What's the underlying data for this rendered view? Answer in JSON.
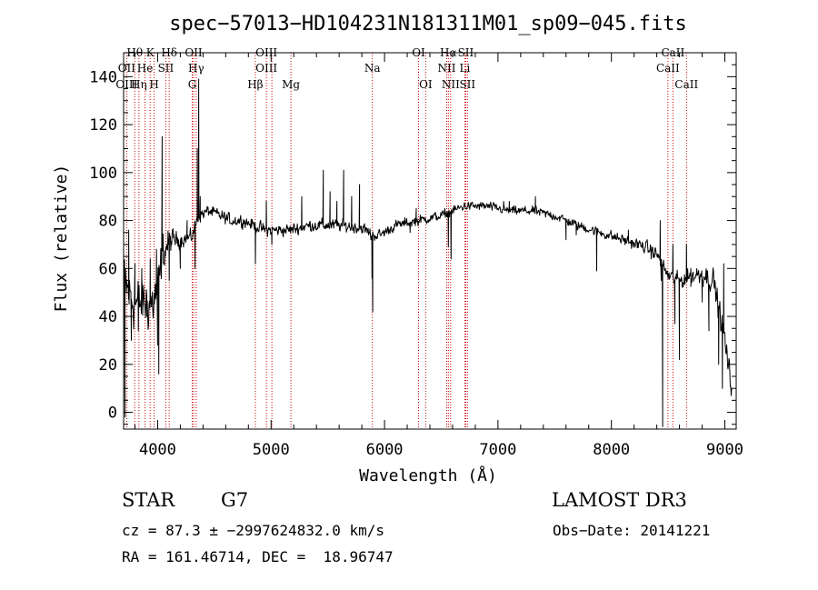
{
  "chart_data": {
    "type": "line",
    "title": "spec−57013−HD104231N181311M01_sp09−045.fits",
    "xlabel": "Wavelength (Å)",
    "ylabel": "Flux (relative)",
    "xlim": [
      3700,
      9100
    ],
    "ylim": [
      -7,
      150
    ],
    "x_ticks": [
      4000,
      5000,
      6000,
      7000,
      8000,
      9000
    ],
    "x_tick_labels": [
      "4000",
      "5000",
      "6000",
      "7000",
      "8000",
      "9000"
    ],
    "y_ticks": [
      0,
      20,
      40,
      60,
      80,
      100,
      120,
      140
    ],
    "y_tick_labels": [
      "0",
      "20",
      "40",
      "60",
      "80",
      "100",
      "120",
      "140"
    ],
    "grid": false,
    "line_color": "#000000",
    "marker_color": "#cc0000",
    "continuum_anchors": [
      [
        3700,
        55
      ],
      [
        3760,
        48
      ],
      [
        3820,
        45
      ],
      [
        3880,
        46
      ],
      [
        3950,
        45
      ],
      [
        4000,
        50
      ],
      [
        4050,
        67
      ],
      [
        4120,
        72
      ],
      [
        4200,
        72
      ],
      [
        4300,
        73
      ],
      [
        4360,
        82
      ],
      [
        4450,
        84
      ],
      [
        4550,
        82
      ],
      [
        4650,
        80
      ],
      [
        4750,
        80
      ],
      [
        4850,
        78
      ],
      [
        4950,
        76
      ],
      [
        5050,
        76
      ],
      [
        5150,
        76
      ],
      [
        5250,
        77
      ],
      [
        5350,
        78
      ],
      [
        5450,
        78
      ],
      [
        5600,
        78
      ],
      [
        5800,
        77
      ],
      [
        5890,
        74
      ],
      [
        5960,
        74
      ],
      [
        6100,
        78
      ],
      [
        6300,
        80
      ],
      [
        6500,
        82
      ],
      [
        6700,
        86
      ],
      [
        6900,
        86
      ],
      [
        7100,
        84
      ],
      [
        7300,
        84
      ],
      [
        7500,
        82
      ],
      [
        7700,
        78
      ],
      [
        7900,
        75
      ],
      [
        8100,
        72
      ],
      [
        8300,
        69
      ],
      [
        8400,
        66
      ],
      [
        8500,
        57
      ],
      [
        8600,
        55
      ],
      [
        8800,
        58
      ],
      [
        8900,
        55
      ],
      [
        9000,
        30
      ],
      [
        9050,
        12
      ]
    ],
    "spikes": [
      [
        3712,
        -2
      ],
      [
        3745,
        76
      ],
      [
        3768,
        30
      ],
      [
        3800,
        62
      ],
      [
        3830,
        34
      ],
      [
        3860,
        60
      ],
      [
        3905,
        40
      ],
      [
        3935,
        64
      ],
      [
        3990,
        68
      ],
      [
        4000,
        28
      ],
      [
        4010,
        16
      ],
      [
        4040,
        115
      ],
      [
        4080,
        70
      ],
      [
        4102,
        55
      ],
      [
        4200,
        60
      ],
      [
        4260,
        80
      ],
      [
        4330,
        60
      ],
      [
        4350,
        110
      ],
      [
        4362,
        139
      ],
      [
        4375,
        90
      ],
      [
        4862,
        62
      ],
      [
        4958,
        88
      ],
      [
        5007,
        70
      ],
      [
        5270,
        90
      ],
      [
        5460,
        101
      ],
      [
        5520,
        92
      ],
      [
        5580,
        88
      ],
      [
        5640,
        101
      ],
      [
        5710,
        90
      ],
      [
        5780,
        95
      ],
      [
        5880,
        72
      ],
      [
        5890,
        56
      ],
      [
        5896,
        42
      ],
      [
        6225,
        75
      ],
      [
        6280,
        85
      ],
      [
        6563,
        69
      ],
      [
        6587,
        64
      ],
      [
        7050,
        88
      ],
      [
        7100,
        88
      ],
      [
        7330,
        90
      ],
      [
        7600,
        72
      ],
      [
        7690,
        74
      ],
      [
        7870,
        59
      ],
      [
        8150,
        76
      ],
      [
        8350,
        64
      ],
      [
        8430,
        80
      ],
      [
        8440,
        55
      ],
      [
        8452,
        -6
      ],
      [
        8542,
        70
      ],
      [
        8560,
        37
      ],
      [
        8600,
        22
      ],
      [
        8662,
        70
      ],
      [
        8700,
        60
      ],
      [
        8800,
        46
      ],
      [
        8860,
        34
      ],
      [
        8925,
        50
      ],
      [
        8945,
        20
      ],
      [
        8978,
        10
      ],
      [
        8990,
        62
      ]
    ],
    "noise_profile": [
      [
        3700,
        14
      ],
      [
        4000,
        13
      ],
      [
        4150,
        4
      ],
      [
        4400,
        3
      ],
      [
        5800,
        3
      ],
      [
        6000,
        2.5
      ],
      [
        7000,
        2.2
      ],
      [
        8000,
        2.5
      ],
      [
        8300,
        3
      ],
      [
        8600,
        4
      ],
      [
        9100,
        7
      ]
    ],
    "line_markers": [
      {
        "label": "Hθ",
        "wavelength": 3798,
        "row": 0
      },
      {
        "label": "OII",
        "wavelength": 3727,
        "row": 1
      },
      {
        "label": "OIII",
        "wavelength": 3727,
        "row": 2
      },
      {
        "label": "Hη",
        "wavelength": 3835,
        "row": 2
      },
      {
        "label": "He",
        "wavelength": 3889,
        "row": 1
      },
      {
        "label": "K",
        "wavelength": 3934,
        "row": 0
      },
      {
        "label": "SII",
        "wavelength": 4072,
        "row": 1
      },
      {
        "label": "H",
        "wavelength": 3969,
        "row": 2
      },
      {
        "label": "Hδ",
        "wavelength": 4102,
        "row": 0
      },
      {
        "label": "OII",
        "wavelength": 4317,
        "row": 0
      },
      {
        "label": "Hγ",
        "wavelength": 4340,
        "row": 1
      },
      {
        "label": "G",
        "wavelength": 4305,
        "row": 2
      },
      {
        "label": "OIII",
        "wavelength": 4959,
        "row": 0
      },
      {
        "label": "OIII",
        "wavelength": 4959,
        "row": 1
      },
      {
        "label": "Hβ",
        "wavelength": 4861,
        "row": 2
      },
      {
        "label": "OIII",
        "wavelength": 5007,
        "row": -1
      },
      {
        "label": "Mg",
        "wavelength": 5175,
        "row": 2
      },
      {
        "label": "Na",
        "wavelength": 5893,
        "row": 1
      },
      {
        "label": "OI",
        "wavelength": 6300,
        "row": 0
      },
      {
        "label": "OI",
        "wavelength": 6363,
        "row": 2
      },
      {
        "label": "Hα",
        "wavelength": 6563,
        "row": 0
      },
      {
        "label": "SII",
        "wavelength": 6716,
        "row": 0
      },
      {
        "label": "NII",
        "wavelength": 6548,
        "row": 1
      },
      {
        "label": "Li",
        "wavelength": 6708,
        "row": 1
      },
      {
        "label": "NII",
        "wavelength": 6583,
        "row": 2
      },
      {
        "label": "SII",
        "wavelength": 6731,
        "row": 2
      },
      {
        "label": "CaII",
        "wavelength": 8542,
        "row": 0
      },
      {
        "label": "CaII",
        "wavelength": 8498,
        "row": 1
      },
      {
        "label": "CaII",
        "wavelength": 8662,
        "row": 2
      }
    ]
  },
  "info": {
    "object_class": "STAR",
    "subclass": "G7",
    "survey": "LAMOST DR3",
    "redshift_line": "cz = 87.3 ± −2997624832.0 km/s",
    "obs_date": "Obs−Date: 20141221",
    "coords": "RA = 161.46714, DEC =  18.96747"
  }
}
